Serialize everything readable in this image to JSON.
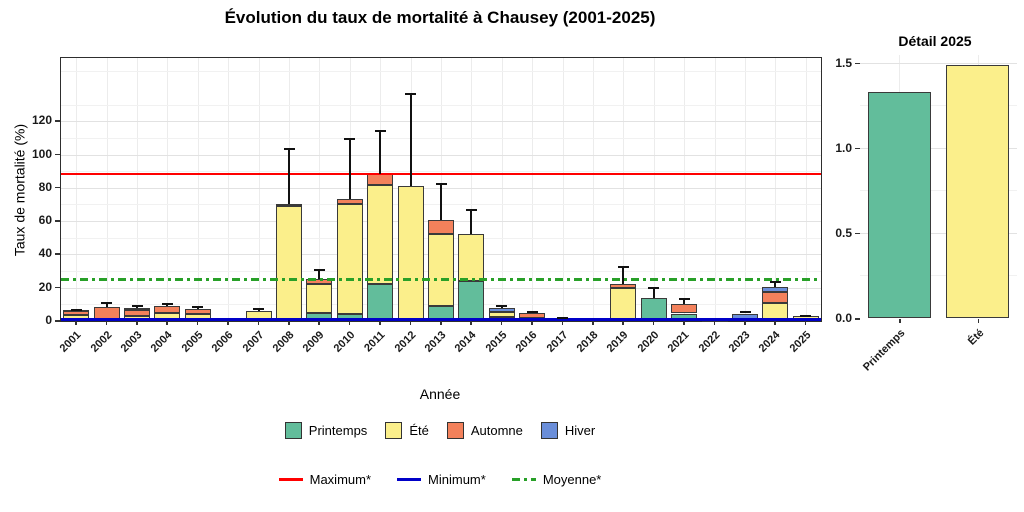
{
  "chart_data": {
    "type": "bar",
    "stacked": true,
    "title": "Évolution du taux de mortalité à Chausey (2001-2025)",
    "xlabel": "Année",
    "ylabel": "Taux de mortalité (%)",
    "ylim": [
      0,
      158
    ],
    "yticks": [
      0,
      20,
      40,
      60,
      80,
      100,
      120
    ],
    "grid": "on",
    "categories": [
      "2001",
      "2002",
      "2003",
      "2004",
      "2005",
      "2006",
      "2007",
      "2008",
      "2009",
      "2010",
      "2011",
      "2012",
      "2013",
      "2014",
      "2015",
      "2016",
      "2017",
      "2018",
      "2019",
      "2020",
      "2021",
      "2022",
      "2023",
      "2024",
      "2025"
    ],
    "series": [
      {
        "name": "Printemps",
        "color": "#62BD9B",
        "values": [
          0,
          0,
          0,
          0,
          0,
          0,
          0,
          0,
          5,
          4,
          22.5,
          0,
          9,
          24,
          2.4,
          1.5,
          0,
          0,
          0,
          14,
          4.5,
          0,
          0,
          0,
          1.33
        ]
      },
      {
        "name": "Été",
        "color": "#FBEF8B",
        "values": [
          3.5,
          1,
          3,
          5,
          4,
          0,
          6,
          69,
          17,
          66,
          59,
          81,
          43.5,
          28.5,
          3,
          0,
          0,
          0,
          20,
          0,
          0,
          0,
          0,
          11,
          1.49
        ]
      },
      {
        "name": "Automne",
        "color": "#F3815B",
        "values": [
          2.5,
          7.5,
          3.5,
          4,
          3,
          0,
          0,
          1,
          3,
          3.5,
          7,
          0,
          8,
          0,
          0,
          3.3,
          0,
          0,
          2.5,
          0,
          5.5,
          0,
          0,
          6.5,
          0
        ]
      },
      {
        "name": "Hiver",
        "color": "#6A8ED9",
        "values": [
          0.5,
          0,
          1.3,
          0,
          0,
          1.5,
          0,
          0,
          0,
          0,
          0,
          0,
          0,
          0,
          2.4,
          0,
          1.8,
          0,
          0,
          0,
          0,
          0.7,
          4.5,
          3,
          0
        ]
      }
    ],
    "error_high": [
      7.5,
      11.5,
      9.5,
      11,
      9,
      null,
      8,
      104,
      31,
      110,
      115,
      137,
      83,
      67.5,
      9.5,
      6,
      2.6,
      null,
      33,
      20.5,
      14,
      null,
      6,
      24,
      3.5
    ],
    "ref_lines": [
      {
        "label": "Maximum*",
        "value": 88.6,
        "color": "#FF0000",
        "style": "solid",
        "thickness": 2
      },
      {
        "label": "Minimum*",
        "value": 1.0,
        "color": "#0000C8",
        "style": "solid",
        "thickness": 2.5
      },
      {
        "label": "Moyenne*",
        "value": 25.0,
        "color": "#28A028",
        "style": "dashdot",
        "thickness": 3
      }
    ],
    "legend_position": "bottom"
  },
  "detail_chart": {
    "type": "bar",
    "title": "Détail 2025",
    "categories": [
      "Printemps",
      "Été"
    ],
    "values": [
      1.33,
      1.49
    ],
    "colors": [
      "#62BD9B",
      "#FBEF8B"
    ],
    "yticks": [
      0.0,
      0.5,
      1.0,
      1.5
    ],
    "ytick_labels": [
      "0.0",
      "0.5",
      "1.0",
      "1.5"
    ],
    "ylim": [
      0,
      1.547
    ],
    "grid": "on"
  }
}
